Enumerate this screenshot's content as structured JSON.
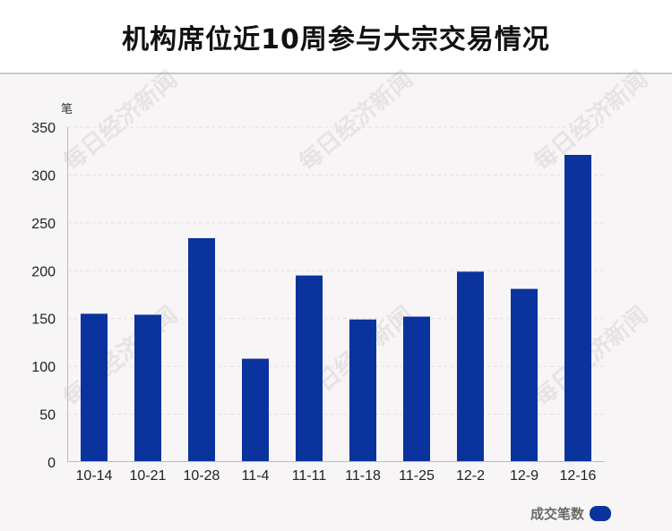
{
  "title": "机构席位近10周参与大宗交易情况",
  "watermark_text": "每日经济新闻",
  "chart_data": {
    "type": "bar",
    "categories": [
      "10-14",
      "10-21",
      "10-28",
      "11-4",
      "11-11",
      "11-18",
      "11-25",
      "12-2",
      "12-9",
      "12-16"
    ],
    "series": [
      {
        "name": "成交笔数",
        "values": [
          155,
          154,
          234,
          108,
          195,
          149,
          152,
          199,
          181,
          321
        ]
      }
    ],
    "ylabel": "笔",
    "ylim": [
      0,
      350
    ],
    "yticks": [
      0,
      50,
      100,
      150,
      200,
      250,
      300,
      350
    ],
    "grid": true,
    "legend_position": "bottom-right",
    "bar_color": "#0a339d"
  }
}
